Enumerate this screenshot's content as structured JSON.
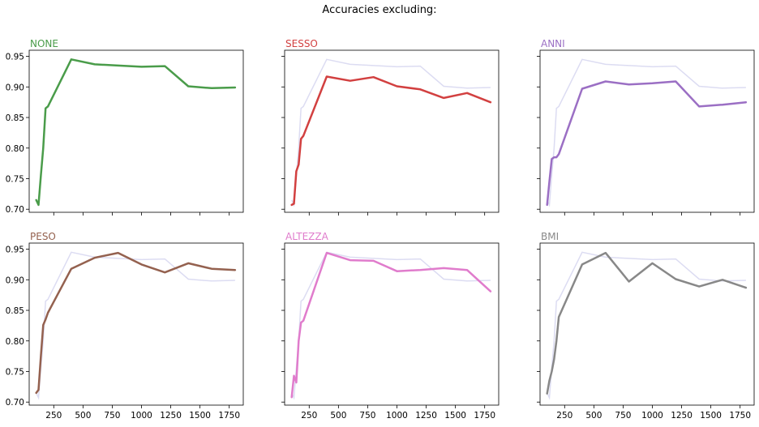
{
  "suptitle": "Accuracies excluding:",
  "chart_data": [
    {
      "type": "line",
      "title": "NONE",
      "color": "#4a9c4a",
      "xlim": [
        40,
        1870
      ],
      "ylim": [
        0.695,
        0.96
      ],
      "xticks": [
        250,
        500,
        750,
        1000,
        1250,
        1500,
        1750
      ],
      "yticks": [
        0.7,
        0.75,
        0.8,
        0.85,
        0.9,
        0.95
      ],
      "show_xticklabels": false,
      "show_yticklabels": true,
      "series": [
        {
          "x": [
            100,
            120,
            140,
            160,
            180,
            200,
            400,
            600,
            800,
            1000,
            1200,
            1400,
            1600,
            1800
          ],
          "y": [
            0.715,
            0.707,
            0.755,
            0.8,
            0.865,
            0.868,
            0.945,
            0.937,
            0.935,
            0.933,
            0.934,
            0.901,
            0.898,
            0.899
          ]
        }
      ]
    },
    {
      "type": "line",
      "title": "SESSO",
      "color": "#d24040",
      "xlim": [
        40,
        1870
      ],
      "ylim": [
        0.695,
        0.96
      ],
      "xticks": [
        250,
        500,
        750,
        1000,
        1250,
        1500,
        1750
      ],
      "yticks": [
        0.7,
        0.75,
        0.8,
        0.85,
        0.9,
        0.95
      ],
      "show_xticklabels": false,
      "show_yticklabels": false,
      "series": [
        {
          "x": [
            100,
            120,
            140,
            160,
            180,
            200,
            400,
            600,
            800,
            1000,
            1200,
            1400,
            1600,
            1800
          ],
          "y": [
            0.707,
            0.709,
            0.762,
            0.773,
            0.815,
            0.82,
            0.917,
            0.91,
            0.916,
            0.901,
            0.896,
            0.882,
            0.89,
            0.875
          ]
        }
      ]
    },
    {
      "type": "line",
      "title": "ANNI",
      "color": "#9b6fc4",
      "xlim": [
        40,
        1870
      ],
      "ylim": [
        0.695,
        0.96
      ],
      "xticks": [
        250,
        500,
        750,
        1000,
        1250,
        1500,
        1750
      ],
      "yticks": [
        0.7,
        0.75,
        0.8,
        0.85,
        0.9,
        0.95
      ],
      "show_xticklabels": false,
      "show_yticklabels": false,
      "series": [
        {
          "x": [
            100,
            120,
            140,
            160,
            180,
            200,
            400,
            600,
            800,
            1000,
            1200,
            1400,
            1600,
            1800
          ],
          "y": [
            0.707,
            0.745,
            0.782,
            0.785,
            0.785,
            0.79,
            0.897,
            0.909,
            0.904,
            0.906,
            0.909,
            0.868,
            0.871,
            0.875
          ]
        }
      ]
    },
    {
      "type": "line",
      "title": "PESO",
      "color": "#94614f",
      "xlim": [
        40,
        1870
      ],
      "ylim": [
        0.695,
        0.96
      ],
      "xticks": [
        250,
        500,
        750,
        1000,
        1250,
        1500,
        1750
      ],
      "yticks": [
        0.7,
        0.75,
        0.8,
        0.85,
        0.9,
        0.95
      ],
      "show_xticklabels": true,
      "show_yticklabels": true,
      "series": [
        {
          "x": [
            100,
            120,
            140,
            160,
            180,
            200,
            400,
            600,
            800,
            1000,
            1200,
            1400,
            1600,
            1800
          ],
          "y": [
            0.715,
            0.72,
            0.775,
            0.826,
            0.835,
            0.846,
            0.918,
            0.936,
            0.944,
            0.925,
            0.912,
            0.927,
            0.918,
            0.916
          ]
        }
      ]
    },
    {
      "type": "line",
      "title": "ALTEZZA",
      "color": "#e07ccc",
      "xlim": [
        40,
        1870
      ],
      "ylim": [
        0.695,
        0.96
      ],
      "xticks": [
        250,
        500,
        750,
        1000,
        1250,
        1500,
        1750
      ],
      "yticks": [
        0.7,
        0.75,
        0.8,
        0.85,
        0.9,
        0.95
      ],
      "show_xticklabels": true,
      "show_yticklabels": false,
      "series": [
        {
          "x": [
            100,
            120,
            140,
            160,
            180,
            200,
            400,
            600,
            800,
            1000,
            1200,
            1400,
            1600,
            1800
          ],
          "y": [
            0.708,
            0.743,
            0.732,
            0.8,
            0.83,
            0.833,
            0.944,
            0.932,
            0.931,
            0.914,
            0.916,
            0.919,
            0.916,
            0.881
          ]
        }
      ]
    },
    {
      "type": "line",
      "title": "BMI",
      "color": "#888888",
      "xlim": [
        40,
        1870
      ],
      "ylim": [
        0.695,
        0.96
      ],
      "xticks": [
        250,
        500,
        750,
        1000,
        1250,
        1500,
        1750
      ],
      "yticks": [
        0.7,
        0.75,
        0.8,
        0.85,
        0.9,
        0.95
      ],
      "show_xticklabels": true,
      "show_yticklabels": false,
      "series": [
        {
          "x": [
            100,
            120,
            140,
            160,
            180,
            200,
            400,
            600,
            800,
            1000,
            1200,
            1400,
            1600,
            1800
          ],
          "y": [
            0.714,
            0.735,
            0.75,
            0.77,
            0.8,
            0.839,
            0.925,
            0.944,
            0.897,
            0.927,
            0.901,
            0.889,
            0.9,
            0.887
          ]
        }
      ]
    }
  ],
  "reference_line": {
    "color": "#dcdcf2",
    "x": [
      100,
      120,
      140,
      160,
      180,
      200,
      400,
      600,
      800,
      1000,
      1200,
      1400,
      1600,
      1800
    ],
    "y": [
      0.715,
      0.707,
      0.755,
      0.8,
      0.865,
      0.868,
      0.945,
      0.937,
      0.935,
      0.933,
      0.934,
      0.901,
      0.898,
      0.899
    ]
  }
}
